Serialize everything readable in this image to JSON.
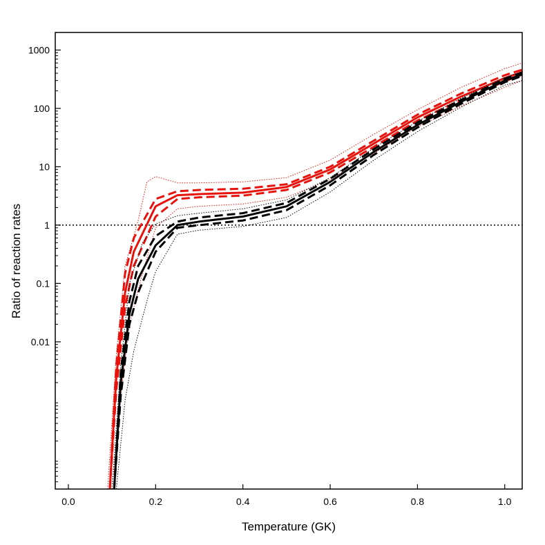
{
  "chart_data": {
    "type": "line",
    "xlabel": "Temperature (GK)",
    "ylabel": "Ratio of reaction rates",
    "xlim": [
      -0.03,
      1.04
    ],
    "ylim": [
      3e-05,
      2000
    ],
    "yscale": "log",
    "grid": false,
    "x_ticks": [
      {
        "value": 0.0,
        "label": "0.0"
      },
      {
        "value": 0.2,
        "label": "0.2"
      },
      {
        "value": 0.4,
        "label": "0.4"
      },
      {
        "value": 0.6,
        "label": "0.6"
      },
      {
        "value": 0.8,
        "label": "0.8"
      },
      {
        "value": 1.0,
        "label": "1.0"
      }
    ],
    "y_ticks": [
      {
        "value": 0.01,
        "label": "0.01"
      },
      {
        "value": 0.1,
        "label": "0.1"
      },
      {
        "value": 1,
        "label": "1"
      },
      {
        "value": 10,
        "label": "10"
      },
      {
        "value": 100,
        "label": "100"
      },
      {
        "value": 1000,
        "label": "1000"
      }
    ],
    "reference_line": {
      "y": 1,
      "style": "dotted",
      "color": "#000000"
    },
    "series": [
      {
        "color": "#e8120c",
        "style": "solid",
        "x": [
          0.095,
          0.11,
          0.13,
          0.15,
          0.2,
          0.25,
          0.3,
          0.4,
          0.5,
          0.6,
          0.7,
          0.8,
          0.9,
          1.0,
          1.04
        ],
        "y": [
          3e-05,
          0.0025,
          0.07,
          0.35,
          2.1,
          3.25,
          3.4,
          3.6,
          4.5,
          9,
          25,
          70,
          160,
          330,
          420
        ]
      },
      {
        "color": "#e8120c",
        "style": "dashed",
        "x": [
          0.095,
          0.11,
          0.13,
          0.15,
          0.2,
          0.25,
          0.3,
          0.4,
          0.5,
          0.6,
          0.7,
          0.8,
          0.9,
          1.0,
          1.04
        ],
        "y": [
          3e-05,
          0.004,
          0.15,
          0.6,
          2.8,
          3.8,
          4.0,
          4.2,
          5.0,
          10,
          28,
          78,
          180,
          370,
          460
        ]
      },
      {
        "color": "#e8120c",
        "style": "dashed",
        "x": [
          0.095,
          0.11,
          0.13,
          0.15,
          0.2,
          0.25,
          0.3,
          0.4,
          0.5,
          0.6,
          0.7,
          0.8,
          0.9,
          1.0,
          1.04
        ],
        "y": [
          3e-05,
          0.0015,
          0.04,
          0.2,
          1.4,
          2.8,
          3.0,
          3.2,
          4.0,
          8,
          22,
          62,
          140,
          290,
          380
        ]
      },
      {
        "color": "#e8120c",
        "style": "dotted",
        "x": [
          0.09,
          0.11,
          0.13,
          0.16,
          0.18,
          0.2,
          0.25,
          0.3,
          0.4,
          0.5,
          0.6,
          0.7,
          0.8,
          0.9,
          1.0,
          1.04
        ],
        "y": [
          3e-05,
          0.006,
          0.2,
          1.2,
          5.5,
          6.8,
          5.3,
          5.3,
          5.5,
          6.5,
          13,
          36,
          95,
          230,
          480,
          600
        ]
      },
      {
        "color": "#e8120c",
        "style": "dotted",
        "x": [
          0.1,
          0.12,
          0.14,
          0.17,
          0.2,
          0.25,
          0.3,
          0.4,
          0.5,
          0.6,
          0.7,
          0.8,
          0.9,
          1.0,
          1.04
        ],
        "y": [
          3e-05,
          0.0012,
          0.02,
          0.15,
          0.9,
          1.9,
          2.1,
          2.3,
          3.0,
          6,
          17,
          48,
          110,
          230,
          300
        ]
      },
      {
        "color": "#000000",
        "style": "solid",
        "x": [
          0.105,
          0.12,
          0.14,
          0.16,
          0.2,
          0.25,
          0.3,
          0.4,
          0.5,
          0.6,
          0.7,
          0.8,
          0.9,
          1.0,
          1.04
        ],
        "y": [
          3e-05,
          0.002,
          0.03,
          0.12,
          0.45,
          1.0,
          1.15,
          1.4,
          2.1,
          5.5,
          18,
          52,
          130,
          300,
          380
        ]
      },
      {
        "color": "#000000",
        "style": "dashed",
        "x": [
          0.105,
          0.12,
          0.14,
          0.16,
          0.2,
          0.25,
          0.3,
          0.4,
          0.5,
          0.6,
          0.7,
          0.8,
          0.9,
          1.0,
          1.04
        ],
        "y": [
          3e-05,
          0.003,
          0.05,
          0.2,
          0.65,
          1.15,
          1.35,
          1.6,
          2.4,
          6.2,
          20,
          57,
          140,
          320,
          410
        ]
      },
      {
        "color": "#000000",
        "style": "dashed",
        "x": [
          0.105,
          0.12,
          0.14,
          0.16,
          0.2,
          0.25,
          0.3,
          0.4,
          0.5,
          0.6,
          0.7,
          0.8,
          0.9,
          1.0,
          1.04
        ],
        "y": [
          3e-05,
          0.0012,
          0.02,
          0.07,
          0.35,
          0.9,
          1.0,
          1.2,
          1.8,
          4.8,
          16,
          47,
          120,
          280,
          360
        ]
      },
      {
        "color": "#000000",
        "style": "dotted",
        "x": [
          0.1,
          0.12,
          0.14,
          0.17,
          0.2,
          0.25,
          0.3,
          0.4,
          0.5,
          0.6,
          0.7,
          0.8,
          0.9,
          1.0,
          1.04
        ],
        "y": [
          3e-05,
          0.004,
          0.1,
          0.5,
          1.05,
          1.45,
          1.6,
          1.9,
          2.7,
          6.5,
          21,
          60,
          150,
          340,
          430
        ]
      },
      {
        "color": "#000000",
        "style": "dotted",
        "x": [
          0.11,
          0.13,
          0.15,
          0.18,
          0.2,
          0.25,
          0.3,
          0.4,
          0.5,
          0.6,
          0.7,
          0.8,
          0.9,
          1.0,
          1.04
        ],
        "y": [
          3e-05,
          0.001,
          0.007,
          0.05,
          0.16,
          0.7,
          0.82,
          0.95,
          1.35,
          3.7,
          13,
          40,
          105,
          250,
          300
        ]
      }
    ]
  }
}
